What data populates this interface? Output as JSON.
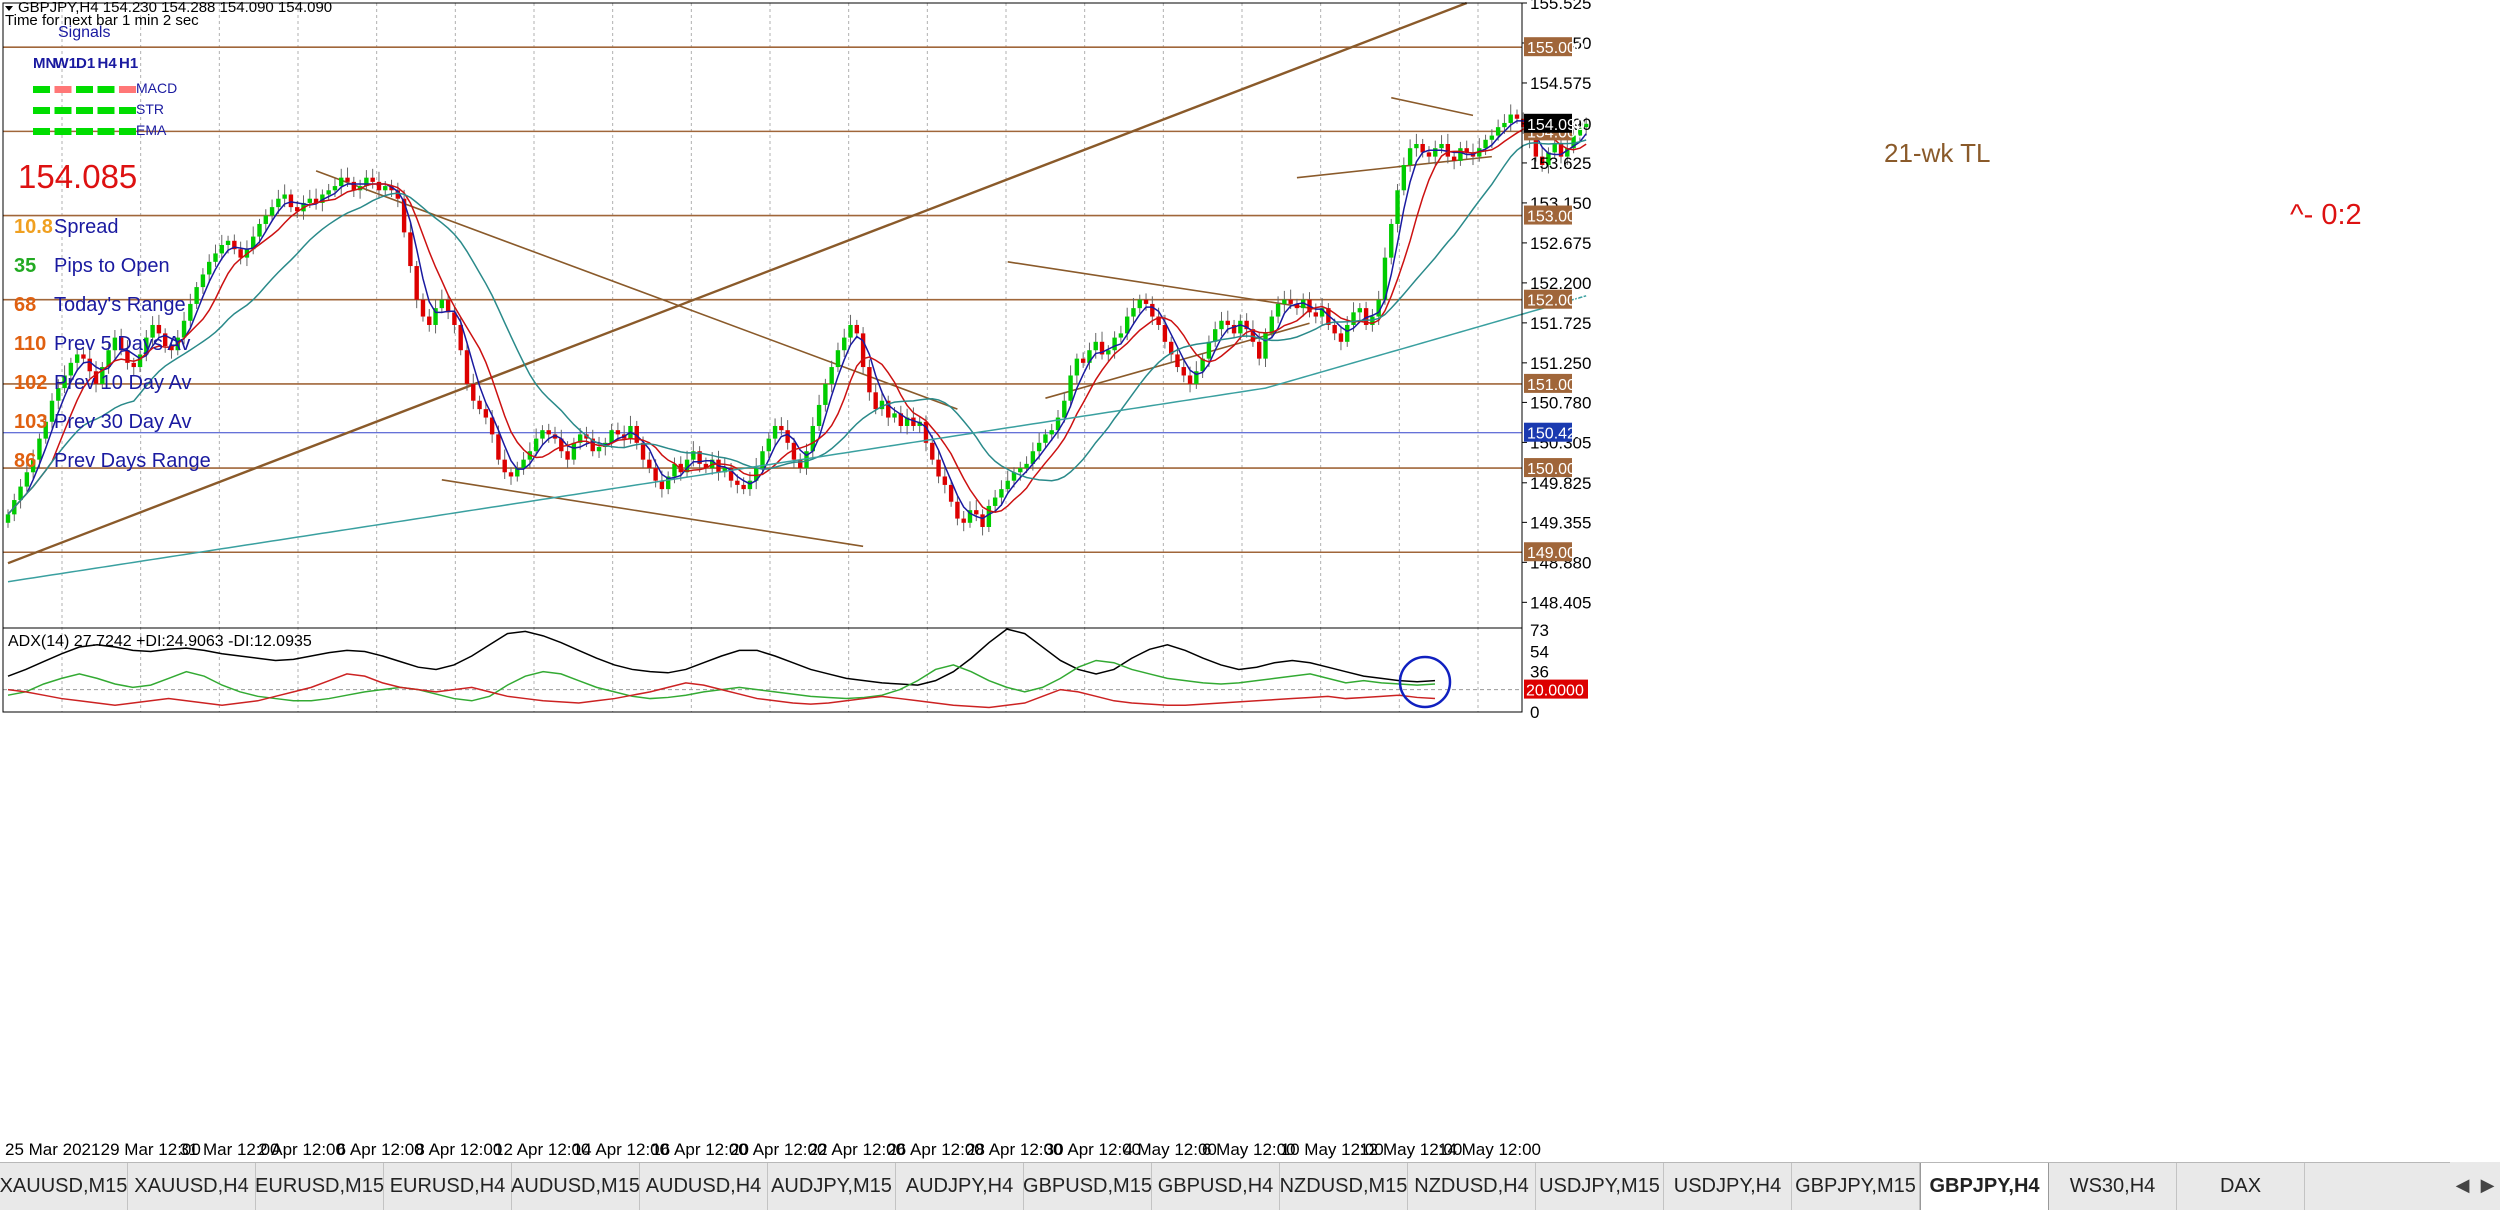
{
  "header": {
    "symbol_line": "GBPJPY,H4  154.230 154.288 154.090 154.090",
    "next_bar": "Time for next bar  1 min 2 sec"
  },
  "signals": {
    "title": "Signals",
    "timeframes": [
      "MN",
      "W1",
      "D1",
      "H4",
      "H1"
    ],
    "rows": [
      {
        "label": "MACD",
        "colors": [
          "#00dd00",
          "#ff7777",
          "#00dd00",
          "#00dd00",
          "#ff7777"
        ]
      },
      {
        "label": "STR",
        "colors": [
          "#00dd00",
          "#00dd00",
          "#00dd00",
          "#00dd00",
          "#00dd00"
        ]
      },
      {
        "label": "EMA",
        "colors": [
          "#00dd00",
          "#00dd00",
          "#00dd00",
          "#00dd00",
          "#00dd00"
        ]
      }
    ]
  },
  "price_display": "154.085",
  "stats": [
    {
      "value": "10.8",
      "label": "Spread",
      "color": "#f0a020"
    },
    {
      "value": "35",
      "label": "Pips to Open",
      "color": "#22aa22"
    },
    {
      "value": "68",
      "label": "Today's Range",
      "color": "#e06010"
    },
    {
      "value": "110",
      "label": "Prev 5 Days Av",
      "color": "#e06010"
    },
    {
      "value": "102",
      "label": "Prev 10 Day Av",
      "color": "#e06010"
    },
    {
      "value": "103",
      "label": "Prev 30 Day Av",
      "color": "#e06010"
    },
    {
      "value": "86",
      "label": "Prev Days Range",
      "color": "#e06010"
    }
  ],
  "annotations": {
    "trendline_label": "21-wk TL",
    "target_label": "^- 0:2"
  },
  "adx_header": "ADX(14) 27.7242 +DI:24.9063 -DI:12.0935",
  "chart_data": [
    {
      "type": "candlestick",
      "title": "GBPJPY,H4",
      "ylim": [
        148.1,
        155.525
      ],
      "y_tick_labels": [
        "155.525",
        "155.050",
        "154.575",
        "154.090",
        "153.625",
        "153.150",
        "152.675",
        "152.200",
        "151.725",
        "151.250",
        "150.780",
        "150.305",
        "149.825",
        "149.355",
        "148.880",
        "148.405"
      ],
      "horizontal_levels": [
        "155.000",
        "154.000",
        "153.000",
        "152.000",
        "151.000",
        "150.000",
        "149.000"
      ],
      "blue_level": "150.420",
      "current_price": "154.090",
      "x_tick_labels": [
        "25 Mar 2021",
        "29 Mar 12:00",
        "31 Mar 12:00",
        "2 Apr 12:00",
        "6 Apr 12:00",
        "8 Apr 12:00",
        "12 Apr 12:00",
        "14 Apr 12:00",
        "16 Apr 12:00",
        "20 Apr 12:00",
        "22 Apr 12:00",
        "26 Apr 12:00",
        "28 Apr 12:00",
        "30 Apr 12:00",
        "4 May 12:00",
        "6 May 12:00",
        "10 May 12:00",
        "12 May 12:00",
        "14 May 12:00"
      ],
      "x_index_range": [
        0,
        240
      ],
      "closes": [
        149.45,
        149.62,
        149.78,
        149.95,
        150.1,
        150.35,
        150.55,
        150.8,
        150.95,
        151.1,
        151.25,
        151.35,
        151.3,
        151.15,
        151.0,
        151.2,
        151.4,
        151.55,
        151.4,
        151.25,
        151.2,
        151.35,
        151.55,
        151.7,
        151.6,
        151.45,
        151.4,
        151.55,
        151.75,
        151.95,
        152.15,
        152.3,
        152.45,
        152.55,
        152.65,
        152.7,
        152.6,
        152.5,
        152.6,
        152.75,
        152.9,
        153.0,
        153.1,
        153.2,
        153.25,
        153.1,
        153.05,
        153.15,
        153.2,
        153.15,
        153.25,
        153.3,
        153.35,
        153.45,
        153.4,
        153.3,
        153.35,
        153.45,
        153.4,
        153.3,
        153.35,
        153.3,
        153.2,
        152.8,
        152.4,
        152.0,
        151.8,
        151.7,
        151.9,
        152.0,
        151.85,
        151.7,
        151.4,
        151.0,
        150.8,
        150.7,
        150.6,
        150.4,
        150.1,
        149.95,
        149.9,
        150.0,
        150.1,
        150.2,
        150.35,
        150.45,
        150.4,
        150.35,
        150.2,
        150.1,
        150.3,
        150.4,
        150.35,
        150.2,
        150.25,
        150.3,
        150.45,
        150.4,
        150.35,
        150.5,
        150.3,
        150.1,
        150.0,
        149.85,
        149.75,
        149.9,
        150.05,
        149.95,
        150.1,
        150.2,
        150.05,
        150.0,
        150.1,
        149.95,
        150.0,
        149.85,
        149.8,
        149.75,
        149.85,
        150.0,
        150.2,
        150.35,
        150.5,
        150.45,
        150.3,
        150.1,
        150.0,
        150.2,
        150.5,
        150.75,
        151.0,
        151.2,
        151.4,
        151.55,
        151.7,
        151.6,
        151.2,
        150.9,
        150.7,
        150.8,
        150.6,
        150.65,
        150.5,
        150.6,
        150.5,
        150.55,
        150.3,
        150.1,
        149.9,
        149.8,
        149.6,
        149.4,
        149.35,
        149.5,
        149.45,
        149.3,
        149.55,
        149.65,
        149.75,
        149.85,
        149.95,
        150.0,
        150.05,
        150.2,
        150.3,
        150.4,
        150.45,
        150.6,
        150.8,
        151.1,
        151.3,
        151.25,
        151.4,
        151.5,
        151.35,
        151.4,
        151.55,
        151.6,
        151.8,
        151.9,
        152.0,
        151.95,
        151.8,
        151.7,
        151.5,
        151.35,
        151.2,
        151.1,
        151.0,
        151.15,
        151.3,
        151.5,
        151.65,
        151.75,
        151.7,
        151.6,
        151.75,
        151.65,
        151.5,
        151.3,
        151.6,
        151.8,
        151.95,
        152.0,
        151.95,
        151.9,
        152.0,
        151.85,
        151.8,
        151.9,
        151.7,
        151.6,
        151.5,
        151.7,
        151.85,
        151.9,
        151.7,
        151.8,
        152.0,
        152.5,
        152.9,
        153.3,
        153.6,
        153.8,
        153.85,
        153.75,
        153.7,
        153.8,
        153.85,
        153.7,
        153.65,
        153.8,
        153.75,
        153.7,
        153.8,
        153.9,
        153.95,
        154.05,
        154.1,
        154.2,
        154.15,
        154.05,
        153.9,
        153.7,
        153.6,
        153.75,
        153.85,
        153.7,
        153.8,
        153.95,
        154.05,
        154.09
      ],
      "moving_averages": [
        {
          "name": "fast",
          "color": "#1a1aa0",
          "period": 4
        },
        {
          "name": "mid",
          "color": "#cc1111",
          "period": 8
        },
        {
          "name": "slow",
          "color": "#2a8a8a",
          "period": 21
        },
        {
          "name": "long",
          "color": "#3aa0a0",
          "period": 120
        }
      ],
      "trendlines": [
        {
          "name": "21-wk TL",
          "from": [
            0,
            148.87
          ],
          "to": [
            232,
            155.525
          ]
        },
        {
          "name": "falling",
          "from": [
            49,
            153.53
          ],
          "to": [
            151,
            150.7
          ]
        },
        {
          "name": "lower",
          "from": [
            69,
            149.86
          ],
          "to": [
            136,
            149.07
          ]
        },
        {
          "name": "upper-wedge",
          "from": [
            159,
            152.45
          ],
          "to": [
            208,
            151.89
          ]
        },
        {
          "name": "lower-wedge",
          "from": [
            165,
            150.83
          ],
          "to": [
            207,
            151.72
          ]
        },
        {
          "name": "flag-top",
          "from": [
            220,
            154.4
          ],
          "to": [
            233,
            154.19
          ]
        },
        {
          "name": "flag-bottom",
          "from": [
            205,
            153.45
          ],
          "to": [
            236,
            153.7
          ]
        }
      ]
    },
    {
      "type": "line",
      "title": "ADX(14)",
      "ylim": [
        0,
        75
      ],
      "y_tick_labels": [
        "73",
        "54",
        "36",
        "20.0000",
        "0"
      ],
      "level": 20,
      "series": [
        {
          "name": "ADX",
          "color": "#000000",
          "values": [
            32,
            38,
            45,
            52,
            58,
            60,
            58,
            55,
            54,
            56,
            57,
            55,
            52,
            50,
            48,
            46,
            47,
            50,
            53,
            55,
            54,
            50,
            45,
            40,
            38,
            42,
            50,
            60,
            70,
            72,
            68,
            62,
            55,
            48,
            42,
            38,
            36,
            35,
            38,
            44,
            50,
            55,
            55,
            50,
            44,
            38,
            34,
            30,
            28,
            26,
            25,
            24,
            28,
            36,
            48,
            62,
            74,
            70,
            58,
            46,
            38,
            34,
            38,
            48,
            56,
            60,
            55,
            48,
            42,
            38,
            40,
            44,
            46,
            44,
            40,
            36,
            32,
            30,
            28,
            27,
            28
          ]
        },
        {
          "name": "+DI",
          "color": "#33aa33",
          "values": [
            15,
            18,
            25,
            30,
            34,
            30,
            25,
            22,
            24,
            30,
            36,
            32,
            24,
            18,
            14,
            12,
            10,
            10,
            12,
            15,
            18,
            20,
            22,
            20,
            16,
            12,
            10,
            14,
            24,
            32,
            36,
            34,
            28,
            22,
            18,
            14,
            12,
            13,
            15,
            18,
            20,
            22,
            20,
            18,
            16,
            14,
            13,
            12,
            13,
            15,
            20,
            28,
            38,
            42,
            36,
            28,
            22,
            18,
            22,
            30,
            40,
            46,
            44,
            38,
            34,
            30,
            28,
            26,
            25,
            26,
            28,
            30,
            32,
            34,
            30,
            26,
            28,
            26,
            25,
            24,
            25
          ]
        },
        {
          "name": "-DI",
          "color": "#cc2222",
          "values": [
            20,
            18,
            15,
            12,
            10,
            8,
            6,
            8,
            10,
            12,
            10,
            8,
            6,
            8,
            10,
            14,
            18,
            22,
            28,
            34,
            32,
            26,
            22,
            20,
            18,
            20,
            22,
            18,
            14,
            12,
            10,
            9,
            8,
            10,
            12,
            15,
            18,
            22,
            26,
            24,
            20,
            16,
            12,
            10,
            8,
            7,
            8,
            10,
            12,
            14,
            12,
            10,
            8,
            6,
            5,
            4,
            6,
            8,
            14,
            20,
            18,
            14,
            10,
            8,
            7,
            6,
            6,
            7,
            8,
            9,
            10,
            11,
            12,
            13,
            14,
            12,
            13,
            14,
            15,
            13,
            12
          ]
        }
      ]
    }
  ],
  "tabs": [
    "XAUUSD,M15",
    "XAUUSD,H4",
    "EURUSD,M15",
    "EURUSD,H4",
    "AUDUSD,M15",
    "AUDUSD,H4",
    "AUDJPY,M15",
    "AUDJPY,H4",
    "GBPUSD,M15",
    "GBPUSD,H4",
    "NZDUSD,M15",
    "NZDUSD,H4",
    "USDJPY,M15",
    "USDJPY,H4",
    "GBPJPY,M15",
    "GBPJPY,H4",
    "WS30,H4",
    "DAX"
  ],
  "active_tab": "GBPJPY,H4",
  "tab_nav": [
    "◀",
    "▶"
  ]
}
